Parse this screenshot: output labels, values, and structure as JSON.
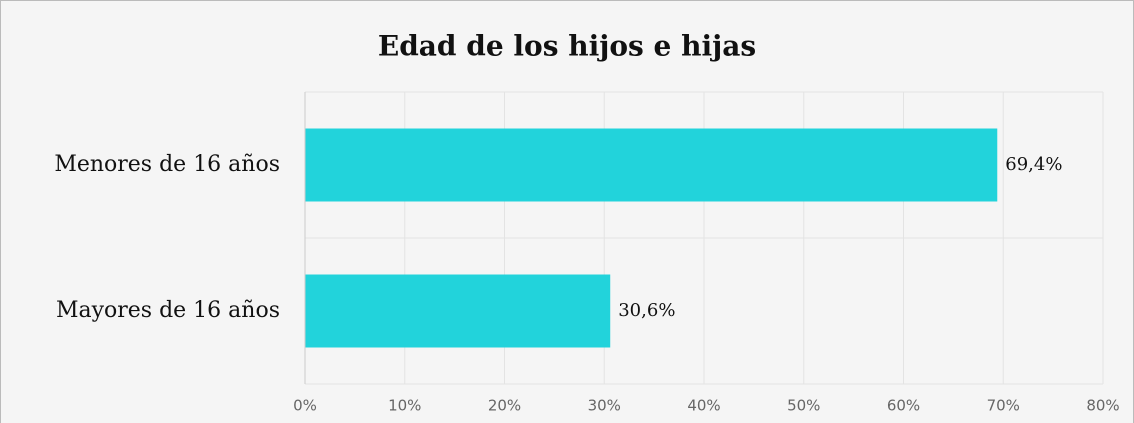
{
  "chart_data": {
    "type": "bar",
    "orientation": "horizontal",
    "title": "Edad de los hijos e hijas",
    "categories": [
      "Menores de 16 años",
      "Mayores de 16 años"
    ],
    "values": [
      69.4,
      30.6
    ],
    "value_labels": [
      "69,4%",
      "30,6%"
    ],
    "color": "#22d3db",
    "xlim": [
      0,
      80
    ],
    "xticks": [
      {
        "value": 0,
        "label": "0%"
      },
      {
        "value": 10,
        "label": "10%"
      },
      {
        "value": 20,
        "label": "20%"
      },
      {
        "value": 30,
        "label": "30%"
      },
      {
        "value": 40,
        "label": "40%"
      },
      {
        "value": 50,
        "label": "50%"
      },
      {
        "value": 60,
        "label": "60%"
      },
      {
        "value": 70,
        "label": "70%"
      },
      {
        "value": 80,
        "label": "80%"
      }
    ],
    "grid": true
  }
}
